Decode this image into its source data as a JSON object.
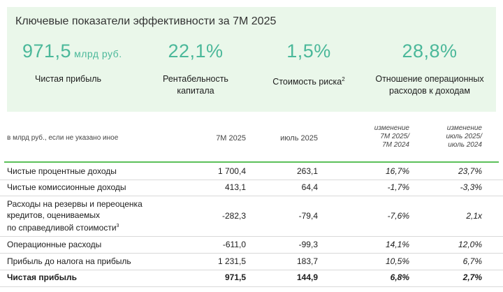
{
  "panel": {
    "title": "Ключевые показатели эффективности за 7М 2025",
    "kpis": [
      {
        "value": "971,5",
        "unit": "млрд руб.",
        "label": "Чистая прибыль"
      },
      {
        "value": "22,1%",
        "unit": "",
        "label_line1": "Рентабельность",
        "label_line2": "капитала"
      },
      {
        "value": "1,5%",
        "unit": "",
        "label": "Стоимость риска",
        "label_sup": "2"
      },
      {
        "value": "28,8%",
        "unit": "",
        "label_line1": "Отношение операционных",
        "label_line2": "расходов к доходам"
      }
    ]
  },
  "table": {
    "headers": {
      "units_note": "в млрд руб., если не указано иное",
      "col1": "7М 2025",
      "col2": "июль 2025",
      "col3": [
        "изменение",
        "7М 2025/",
        "7М 2024"
      ],
      "col4": [
        "изменение",
        "июль 2025/",
        "июль 2024"
      ]
    },
    "rows": [
      {
        "label": "Чистые процентные доходы",
        "v1": "1 700,4",
        "v2": "263,1",
        "v3": "16,7%",
        "v4": "23,7%"
      },
      {
        "label": "Чистые комиссионные доходы",
        "v1": "413,1",
        "v2": "64,4",
        "v3": "-1,7%",
        "v4": "-3,3%"
      },
      {
        "label_lines": [
          "Расходы на резервы и переоценка",
          "кредитов, оцениваемых",
          "по справедливой стоимости"
        ],
        "label_sup": "3",
        "v1": "-282,3",
        "v2": "-79,4",
        "v3": "-7,6%",
        "v4": "2,1x"
      },
      {
        "label": "Операционные расходы",
        "v1": "-611,0",
        "v2": "-99,3",
        "v3": "14,1%",
        "v4": "12,0%"
      },
      {
        "label": "Прибыль до налога на прибыль",
        "v1": "1 231,5",
        "v2": "183,7",
        "v3": "10,5%",
        "v4": "6,7%"
      },
      {
        "label": "Чистая прибыль",
        "v1": "971,5",
        "v2": "144,9",
        "v3": "6,8%",
        "v4": "2,7%"
      }
    ]
  },
  "colors": {
    "accent_value": "#4bb89a",
    "panel_bg": "#eaf7ea",
    "rule_green": "#5cc05a"
  }
}
